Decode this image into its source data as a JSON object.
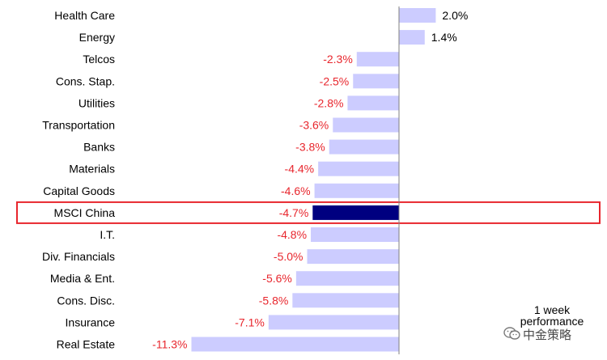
{
  "chart_data": {
    "type": "bar",
    "orientation": "horizontal",
    "categories": [
      "Health Care",
      "Energy",
      "Telcos",
      "Cons. Stap.",
      "Utilities",
      "Transportation",
      "Banks",
      "Materials",
      "Capital Goods",
      "MSCI China",
      "I.T.",
      "Div. Financials",
      "Media & Ent.",
      "Cons. Disc.",
      "Insurance",
      "Real Estate"
    ],
    "values": [
      2.0,
      1.4,
      -2.3,
      -2.5,
      -2.8,
      -3.6,
      -3.8,
      -4.4,
      -4.6,
      -4.7,
      -4.8,
      -5.0,
      -5.6,
      -5.8,
      -7.1,
      -11.3
    ],
    "value_labels": [
      "2.0%",
      "1.4%",
      "-2.3%",
      "-2.5%",
      "-2.8%",
      "-3.6%",
      "-3.8%",
      "-4.4%",
      "-4.6%",
      "-4.7%",
      "-4.8%",
      "-5.0%",
      "-5.6%",
      "-5.8%",
      "-7.1%",
      "-11.3%"
    ],
    "highlight": "MSCI China",
    "xlim": [
      -12,
      2.5
    ],
    "grid": false,
    "legend": "none",
    "annotation": "1 week performance"
  },
  "colors": {
    "bar": "#ccccff",
    "highlight_bar": "#000080",
    "highlight_box": "#e8262d",
    "negative_label": "#e8262d",
    "positive_label": "#000000",
    "axis": "#808080"
  },
  "watermark": {
    "text": "中金策略",
    "icon": "wechat-icon"
  }
}
